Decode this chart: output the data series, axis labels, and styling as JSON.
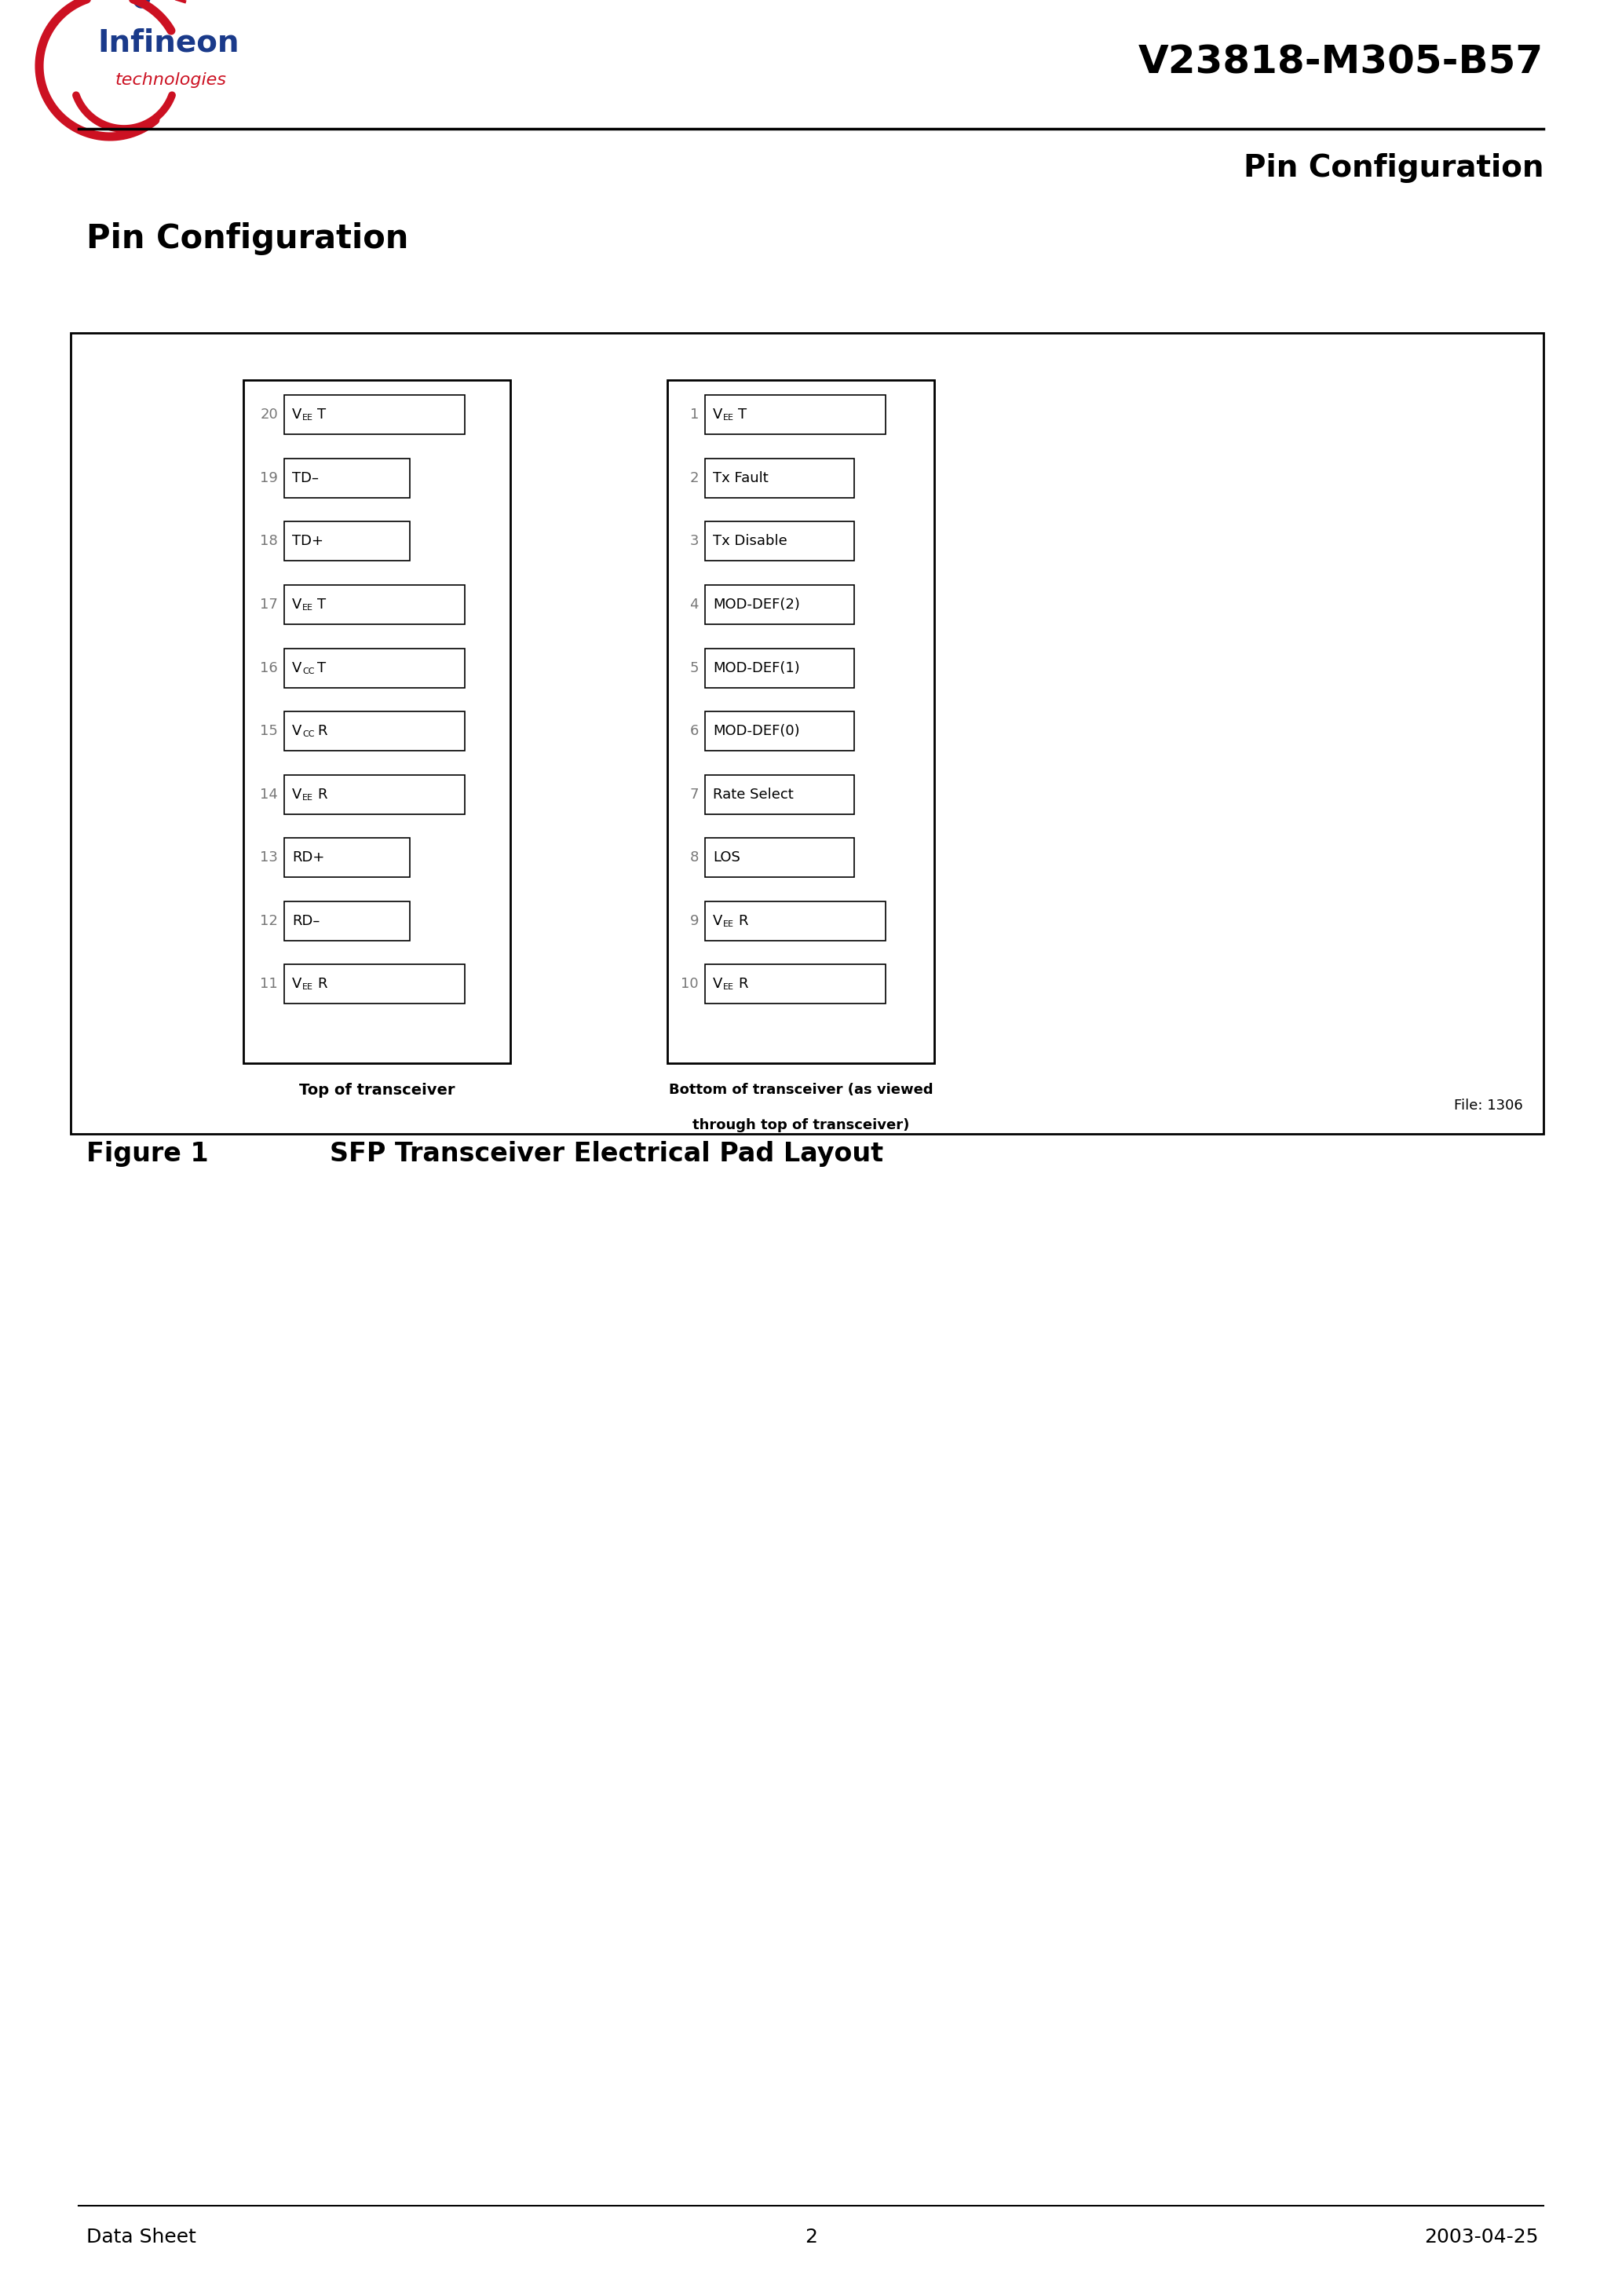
{
  "title": "V23818-M305-B57",
  "section_title": "Pin Configuration",
  "page_section": "Pin Configuration",
  "figure_label": "Figure 1",
  "figure_caption": "SFP Transceiver Electrical Pad Layout",
  "footer_left": "Data Sheet",
  "footer_center": "2",
  "footer_right": "2003-04-25",
  "file_ref": "File: 1306",
  "top_label": "Top of transceiver",
  "bottom_label_line1": "Bottom of transceiver (as viewed",
  "bottom_label_line2": "through top of transceiver)",
  "left_pins": [
    {
      "num": "20",
      "label": "VEET",
      "label_type": "veet",
      "wide": true
    },
    {
      "num": "19",
      "label": "TD–",
      "label_type": "normal",
      "wide": false
    },
    {
      "num": "18",
      "label": "TD+",
      "label_type": "normal",
      "wide": false
    },
    {
      "num": "17",
      "label": "VEET",
      "label_type": "veet",
      "wide": true
    },
    {
      "num": "16",
      "label": "VCCT",
      "label_type": "vcct",
      "wide": true
    },
    {
      "num": "15",
      "label": "VCCR",
      "label_type": "vccr",
      "wide": true
    },
    {
      "num": "14",
      "label": "VEER",
      "label_type": "veer",
      "wide": true
    },
    {
      "num": "13",
      "label": "RD+",
      "label_type": "normal",
      "wide": false
    },
    {
      "num": "12",
      "label": "RD–",
      "label_type": "normal",
      "wide": false
    },
    {
      "num": "11",
      "label": "VEER",
      "label_type": "veer",
      "wide": true
    }
  ],
  "right_pins": [
    {
      "num": "1",
      "label": "VEET",
      "label_type": "veet",
      "wide": true
    },
    {
      "num": "2",
      "label": "Tx Fault",
      "label_type": "normal",
      "wide": false
    },
    {
      "num": "3",
      "label": "Tx Disable",
      "label_type": "normal",
      "wide": false
    },
    {
      "num": "4",
      "label": "MOD-DEF(2)",
      "label_type": "normal",
      "wide": false
    },
    {
      "num": "5",
      "label": "MOD-DEF(1)",
      "label_type": "normal",
      "wide": false
    },
    {
      "num": "6",
      "label": "MOD-DEF(0)",
      "label_type": "normal",
      "wide": false
    },
    {
      "num": "7",
      "label": "Rate Select",
      "label_type": "normal",
      "wide": false
    },
    {
      "num": "8",
      "label": "LOS",
      "label_type": "normal",
      "wide": false
    },
    {
      "num": "9",
      "label": "VEER",
      "label_type": "veer",
      "wide": true
    },
    {
      "num": "10",
      "label": "VEER",
      "label_type": "veer",
      "wide": true
    }
  ]
}
